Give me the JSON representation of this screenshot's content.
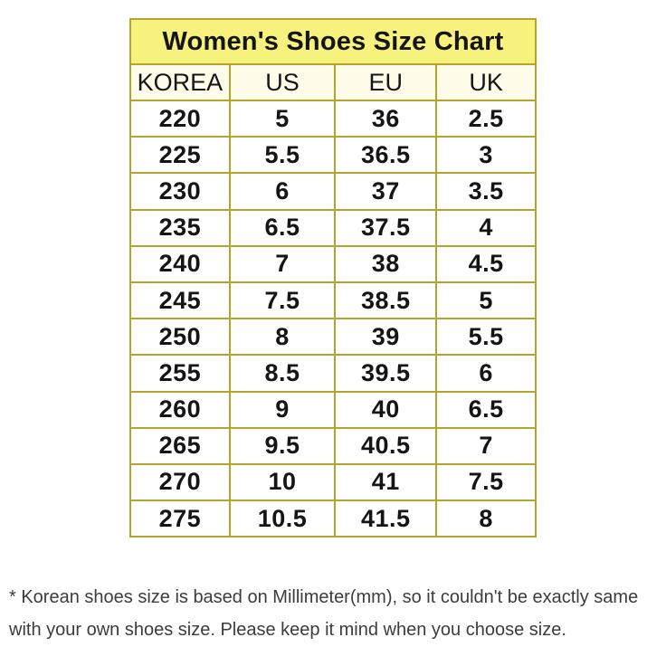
{
  "title": "Women's Shoes Size Chart",
  "table": {
    "headers": [
      "KOREA",
      "US",
      "EU",
      "UK"
    ],
    "rows": [
      [
        "220",
        "5",
        "36",
        "2.5"
      ],
      [
        "225",
        "5.5",
        "36.5",
        "3"
      ],
      [
        "230",
        "6",
        "37",
        "3.5"
      ],
      [
        "235",
        "6.5",
        "37.5",
        "4"
      ],
      [
        "240",
        "7",
        "38",
        "4.5"
      ],
      [
        "245",
        "7.5",
        "38.5",
        "5"
      ],
      [
        "250",
        "8",
        "39",
        "5.5"
      ],
      [
        "255",
        "8.5",
        "39.5",
        "6"
      ],
      [
        "260",
        "9",
        "40",
        "6.5"
      ],
      [
        "265",
        "9.5",
        "40.5",
        "7"
      ],
      [
        "270",
        "10",
        "41",
        "7.5"
      ],
      [
        "275",
        "10.5",
        "41.5",
        "8"
      ]
    ]
  },
  "footnote": "* Korean shoes size is based on Millimeter(mm), so it couldn't be exactly same with your own shoes size. Please keep it mind when you choose size.",
  "colors": {
    "title_bg": "#f7f17d",
    "header_bg": "#fffdea",
    "border": "#b3a42c",
    "cell_bg": "#ffffff",
    "text": "#151515",
    "footnote_text": "#3c3c3c"
  }
}
